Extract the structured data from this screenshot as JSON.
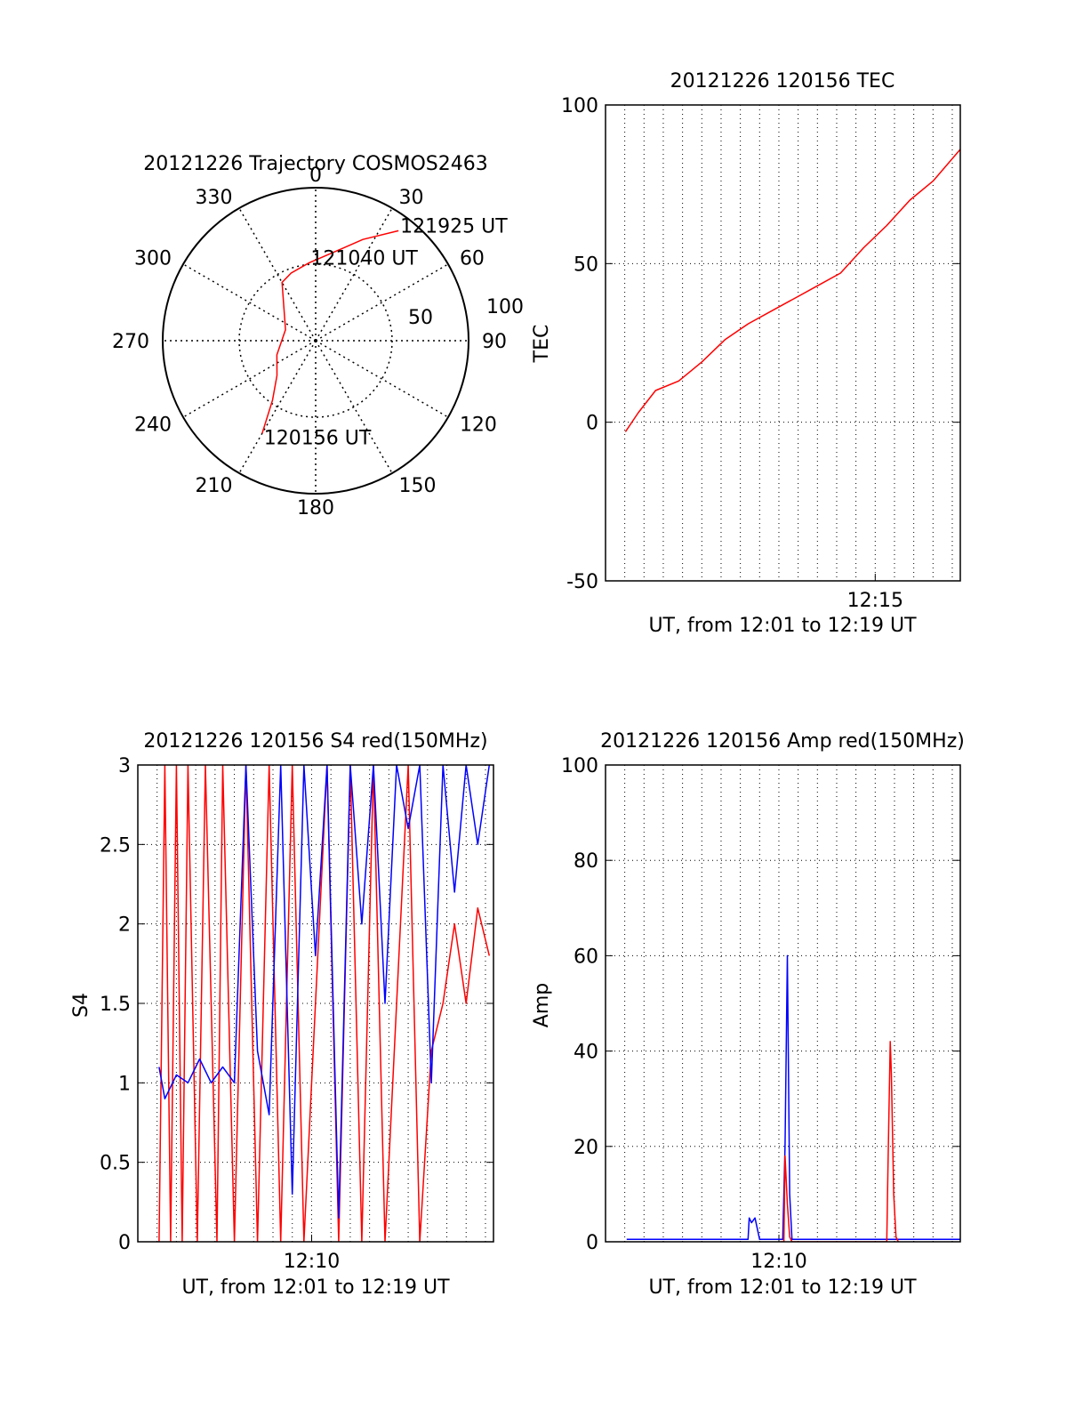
{
  "colors": {
    "red": "#ff0000",
    "blue": "#0000ff",
    "axis": "#000000",
    "grid": "#000000"
  },
  "chart_data": [
    {
      "type": "polar",
      "title": "20121226 Trajectory COSMOS2463",
      "azimuth_labels": [
        "0",
        "30",
        "60",
        "90",
        "120",
        "150",
        "180",
        "210",
        "240",
        "270",
        "300",
        "330"
      ],
      "radial_ticks": [
        "50",
        "100"
      ],
      "track_points": [
        {
          "az": 210,
          "dist": 70,
          "label": "120156 UT"
        },
        {
          "az": 216,
          "dist": 48
        },
        {
          "az": 228,
          "dist": 34
        },
        {
          "az": 250,
          "dist": 27
        },
        {
          "az": 290,
          "dist": 21
        },
        {
          "az": 330,
          "dist": 44
        },
        {
          "az": 340,
          "dist": 47
        },
        {
          "az": 355,
          "dist": 51,
          "label": "121040 UT"
        },
        {
          "az": 10,
          "dist": 58
        },
        {
          "az": 25,
          "dist": 73
        },
        {
          "az": 37,
          "dist": 90,
          "label": "121925 UT"
        }
      ],
      "grid": true
    },
    {
      "type": "line",
      "title": "20121226 120156 TEC",
      "xlabel": "UT, from 12:01 to 12:19 UT",
      "ylabel": "TEC",
      "xlim": [
        12.0167,
        12.3236
      ],
      "ylim": [
        -50,
        100
      ],
      "yticks": [
        "100",
        "50",
        "0",
        "-50"
      ],
      "xticks": [
        {
          "value": 12.25,
          "label": "12:15"
        }
      ],
      "grid": true,
      "series": [
        {
          "color": "red",
          "x": [
            12.0339,
            12.045,
            12.06,
            12.08,
            12.1,
            12.12,
            12.14,
            12.16,
            12.18,
            12.2,
            12.22,
            12.24,
            12.26,
            12.28,
            12.3,
            12.3236
          ],
          "y": [
            -3,
            3,
            10,
            13,
            19,
            26,
            31,
            35,
            39,
            43,
            47,
            55,
            62,
            70,
            76,
            86
          ]
        }
      ]
    },
    {
      "type": "line",
      "title": "20121226 120156 S4 red(150MHz)",
      "xlabel": "UT, from 12:01 to 12:19 UT",
      "ylabel": "S4",
      "xlim": [
        12.0167,
        12.3236
      ],
      "ylim": [
        0,
        3
      ],
      "yticks": [
        "3",
        "2.5",
        "2",
        "1.5",
        "1",
        "0.5",
        "0"
      ],
      "xticks": [
        {
          "value": 12.1667,
          "label": "12:10"
        }
      ],
      "grid": true,
      "series": [
        {
          "color": "red",
          "x": [
            12.035,
            12.04,
            12.045,
            12.05,
            12.055,
            12.06,
            12.068,
            12.075,
            12.085,
            12.09,
            12.1,
            12.11,
            12.12,
            12.13,
            12.14,
            12.15,
            12.16,
            12.18,
            12.19,
            12.2,
            12.21,
            12.22,
            12.23,
            12.25,
            12.26,
            12.27,
            12.28,
            12.29,
            12.3,
            12.31,
            12.32
          ],
          "y": [
            0,
            3,
            0,
            3,
            0,
            3,
            0,
            3,
            0,
            3,
            0,
            3,
            0,
            3,
            0,
            3,
            0,
            3,
            0,
            3,
            0,
            3,
            0,
            3,
            0,
            1.2,
            1.5,
            2.0,
            1.5,
            2.1,
            1.8
          ]
        },
        {
          "color": "blue",
          "x": [
            12.035,
            12.04,
            12.05,
            12.06,
            12.07,
            12.08,
            12.09,
            12.1,
            12.11,
            12.12,
            12.13,
            12.14,
            12.15,
            12.16,
            12.17,
            12.18,
            12.19,
            12.2,
            12.21,
            12.22,
            12.23,
            12.24,
            12.25,
            12.26,
            12.27,
            12.28,
            12.29,
            12.3,
            12.31,
            12.32
          ],
          "y": [
            1.1,
            0.9,
            1.05,
            1.0,
            1.15,
            1.0,
            1.1,
            1.0,
            3.0,
            1.2,
            0.8,
            3.0,
            0.3,
            3.0,
            1.8,
            3.0,
            0.15,
            3.0,
            2.0,
            3.0,
            1.5,
            3.0,
            2.6,
            3.0,
            1.0,
            3.0,
            2.2,
            3.0,
            2.5,
            3.0
          ]
        }
      ]
    },
    {
      "type": "line",
      "title": "20121226 120156 Amp red(150MHz)",
      "xlabel": "UT, from 12:01 to 12:19 UT",
      "ylabel": "Amp",
      "xlim": [
        12.0167,
        12.3236
      ],
      "ylim": [
        0,
        100
      ],
      "yticks": [
        "100",
        "80",
        "60",
        "40",
        "20",
        "0"
      ],
      "xticks": [
        {
          "value": 12.1667,
          "label": "12:10"
        }
      ],
      "grid": true,
      "series": [
        {
          "color": "blue",
          "x": [
            12.035,
            12.1,
            12.14,
            12.141,
            12.143,
            12.146,
            12.15,
            12.17,
            12.172,
            12.174,
            12.176,
            12.178,
            12.18,
            12.2,
            12.25,
            12.3,
            12.3236
          ],
          "y": [
            0.5,
            0.5,
            0.5,
            5,
            4,
            5,
            0.5,
            0.5,
            20,
            60,
            10,
            0.5,
            0.5,
            0.5,
            0.5,
            0.5,
            0.5
          ]
        },
        {
          "color": "red",
          "x": [
            12.168,
            12.171,
            12.172,
            12.174,
            12.176,
            12.178,
            12.26,
            12.261,
            12.263,
            12.264,
            12.266,
            12.268,
            12.27
          ],
          "y": [
            0,
            0,
            18,
            8,
            1,
            0,
            0,
            15,
            42,
            35,
            10,
            1,
            0
          ]
        }
      ]
    }
  ]
}
